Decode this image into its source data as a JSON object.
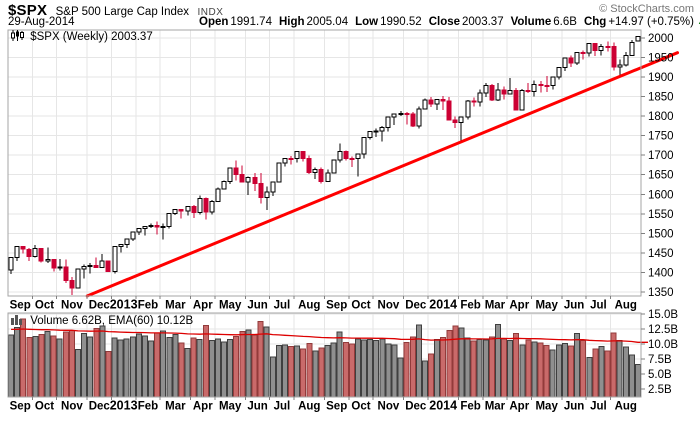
{
  "header": {
    "symbol": "$SPX",
    "name": "S&P 500 Large Cap Index",
    "exchange": "INDX",
    "copyright": "© StockCharts.com",
    "date": "29-Aug-2014",
    "quote": [
      {
        "label": "Open",
        "value": "1991.74"
      },
      {
        "label": "High",
        "value": "2005.04"
      },
      {
        "label": "Low",
        "value": "1990.52"
      },
      {
        "label": "Close",
        "value": "2003.37"
      },
      {
        "label": "Volume",
        "value": "6.6B"
      },
      {
        "label": "Chg",
        "value": "+14.97 (+0.75%)"
      }
    ],
    "chg_icon": "▲",
    "chg_direction": "up"
  },
  "price_panel": {
    "legend": "$SPX (Weekly) 2003.37"
  },
  "volume_panel": {
    "legend": "Volume 6.62B, EMA(60) 10.12B"
  },
  "colors": {
    "candle_up_fill": "#ffffff",
    "candle_up_stroke": "#000000",
    "candle_down": "#cc0033",
    "vol_up_fill": "#8f8f8f",
    "vol_up_stroke": "#3f3f3f",
    "vol_down_fill": "#c96a6a",
    "vol_down_stroke": "#923b3b",
    "trendline": "#ff0000",
    "ema": "#dd0000",
    "grid": "#e6e6e6",
    "panel_border": "#a6a6a6",
    "tick": "#808080",
    "axis_text": "#000000",
    "chg_up": "#007700"
  },
  "chart_data": {
    "type": "candlestick",
    "timeframe": "weekly",
    "title": "$SPX (Weekly)",
    "last_close": 2003.37,
    "months": [
      {
        "label": "Sep",
        "start": 0
      },
      {
        "label": "Oct",
        "start": 4
      },
      {
        "label": "Nov",
        "start": 8
      },
      {
        "label": "Dec",
        "start": 13
      },
      {
        "label": "2013",
        "start": 17,
        "year": true
      },
      {
        "label": "Feb",
        "start": 21
      },
      {
        "label": "Mar",
        "start": 25
      },
      {
        "label": "Apr",
        "start": 30
      },
      {
        "label": "May",
        "start": 34
      },
      {
        "label": "Jun",
        "start": 39
      },
      {
        "label": "Jul",
        "start": 43
      },
      {
        "label": "Aug",
        "start": 47
      },
      {
        "label": "Sep",
        "start": 52
      },
      {
        "label": "Oct",
        "start": 56
      },
      {
        "label": "Nov",
        "start": 60
      },
      {
        "label": "Dec",
        "start": 65
      },
      {
        "label": "2014",
        "start": 69,
        "year": true
      },
      {
        "label": "Feb",
        "start": 74
      },
      {
        "label": "Mar",
        "start": 78
      },
      {
        "label": "Apr",
        "start": 82
      },
      {
        "label": "May",
        "start": 86
      },
      {
        "label": "Jun",
        "start": 91
      },
      {
        "label": "Jul",
        "start": 95
      },
      {
        "label": "Aug",
        "start": 99
      }
    ],
    "price_axis": {
      "min": 1340,
      "max": 2020,
      "ticks": [
        1350,
        1400,
        1450,
        1500,
        1550,
        1600,
        1650,
        1700,
        1750,
        1800,
        1850,
        1900,
        1950,
        2000
      ]
    },
    "volume_axis": {
      "min": 1.2,
      "max": 15.2,
      "ticks": [
        {
          "v": 2.5,
          "label": "2.5B"
        },
        {
          "v": 5,
          "label": "5.0B"
        },
        {
          "v": 7.5,
          "label": "7.5B"
        },
        {
          "v": 10,
          "label": "10.0B"
        },
        {
          "v": 12.5,
          "label": "12.5B"
        },
        {
          "v": 15,
          "label": "15.0B"
        }
      ]
    },
    "trendline": {
      "start_week": 12.5,
      "start_value": 1340,
      "end_week": 109.5,
      "end_value": 1962
    },
    "ema": {
      "period": 60,
      "seed": 12.5,
      "last_label": "10.12B"
    },
    "candles": [
      [
        1406,
        1438,
        1396,
        1438,
        11.5
      ],
      [
        1438,
        1466,
        1429,
        1466,
        12.8
      ],
      [
        1466,
        1468,
        1449,
        1460,
        14.2
      ],
      [
        1459,
        1463,
        1430,
        1441,
        11.1
      ],
      [
        1441,
        1471,
        1439,
        1461,
        11.3
      ],
      [
        1461,
        1463,
        1426,
        1429,
        11.6
      ],
      [
        1429,
        1464,
        1425,
        1433,
        12.1
      ],
      [
        1433,
        1435,
        1403,
        1412,
        11.4
      ],
      [
        1412,
        1434,
        1405,
        1414,
        10.9
      ],
      [
        1414,
        1433,
        1373,
        1380,
        12.0
      ],
      [
        1380,
        1388,
        1343,
        1360,
        12.3
      ],
      [
        1360,
        1409,
        1359,
        1409,
        9.1
      ],
      [
        1409,
        1420,
        1385,
        1416,
        11.8
      ],
      [
        1416,
        1424,
        1398,
        1418,
        11.2
      ],
      [
        1418,
        1439,
        1411,
        1413,
        12.6
      ],
      [
        1413,
        1448,
        1413,
        1430,
        13.0
      ],
      [
        1430,
        1430,
        1401,
        1402,
        8.8
      ],
      [
        1402,
        1467,
        1398,
        1466,
        11.0
      ],
      [
        1466,
        1472,
        1451,
        1472,
        10.7
      ],
      [
        1472,
        1485,
        1463,
        1486,
        10.9
      ],
      [
        1486,
        1503,
        1481,
        1503,
        11.2
      ],
      [
        1503,
        1514,
        1496,
        1513,
        11.7
      ],
      [
        1513,
        1518,
        1495,
        1518,
        11.4
      ],
      [
        1518,
        1525,
        1514,
        1520,
        10.5
      ],
      [
        1520,
        1530,
        1497,
        1516,
        11.9
      ],
      [
        1516,
        1525,
        1485,
        1518,
        12.2
      ],
      [
        1518,
        1552,
        1512,
        1551,
        11.1
      ],
      [
        1551,
        1563,
        1547,
        1561,
        11.6
      ],
      [
        1561,
        1561,
        1538,
        1557,
        10.2
      ],
      [
        1557,
        1570,
        1546,
        1569,
        9.3
      ],
      [
        1569,
        1573,
        1539,
        1553,
        11.0
      ],
      [
        1553,
        1597,
        1548,
        1589,
        10.8
      ],
      [
        1589,
        1592,
        1536,
        1555,
        13.1
      ],
      [
        1555,
        1585,
        1548,
        1582,
        10.6
      ],
      [
        1582,
        1618,
        1581,
        1614,
        10.9
      ],
      [
        1614,
        1635,
        1612,
        1633,
        10.4
      ],
      [
        1633,
        1667,
        1626,
        1667,
        10.8
      ],
      [
        1667,
        1687,
        1635,
        1650,
        11.3
      ],
      [
        1650,
        1674,
        1630,
        1631,
        12.1
      ],
      [
        1631,
        1646,
        1598,
        1643,
        12.4
      ],
      [
        1643,
        1654,
        1608,
        1627,
        11.5
      ],
      [
        1627,
        1655,
        1577,
        1592,
        13.8
      ],
      [
        1592,
        1620,
        1560,
        1606,
        12.9
      ],
      [
        1606,
        1632,
        1596,
        1632,
        7.9
      ],
      [
        1632,
        1680,
        1632,
        1680,
        9.8
      ],
      [
        1680,
        1693,
        1671,
        1692,
        9.9
      ],
      [
        1692,
        1698,
        1676,
        1691,
        9.6
      ],
      [
        1691,
        1710,
        1681,
        1710,
        9.7
      ],
      [
        1710,
        1711,
        1684,
        1691,
        9.2
      ],
      [
        1691,
        1699,
        1652,
        1656,
        10.1
      ],
      [
        1656,
        1669,
        1639,
        1664,
        8.9
      ],
      [
        1664,
        1669,
        1628,
        1633,
        9.4
      ],
      [
        1633,
        1664,
        1633,
        1655,
        9.8
      ],
      [
        1655,
        1689,
        1653,
        1688,
        10.2
      ],
      [
        1688,
        1730,
        1681,
        1710,
        12.0
      ],
      [
        1710,
        1712,
        1687,
        1692,
        10.3
      ],
      [
        1692,
        1697,
        1670,
        1691,
        10.0
      ],
      [
        1691,
        1703,
        1646,
        1703,
        10.9
      ],
      [
        1703,
        1745,
        1692,
        1745,
        10.7
      ],
      [
        1745,
        1762,
        1740,
        1760,
        10.8
      ],
      [
        1760,
        1768,
        1746,
        1762,
        10.6
      ],
      [
        1762,
        1774,
        1735,
        1771,
        10.9
      ],
      [
        1771,
        1798,
        1760,
        1798,
        10.0
      ],
      [
        1798,
        1805,
        1777,
        1805,
        9.9
      ],
      [
        1805,
        1813,
        1800,
        1806,
        7.7
      ],
      [
        1806,
        1810,
        1779,
        1805,
        10.3
      ],
      [
        1805,
        1811,
        1772,
        1775,
        11.2
      ],
      [
        1775,
        1824,
        1768,
        1818,
        13.2
      ],
      [
        1818,
        1845,
        1818,
        1841,
        7.2
      ],
      [
        1841,
        1849,
        1823,
        1831,
        8.4
      ],
      [
        1831,
        1843,
        1815,
        1842,
        10.8
      ],
      [
        1842,
        1851,
        1815,
        1839,
        11.1
      ],
      [
        1839,
        1849,
        1790,
        1790,
        12.3
      ],
      [
        1790,
        1799,
        1770,
        1783,
        13.0
      ],
      [
        1783,
        1798,
        1737,
        1797,
        12.7
      ],
      [
        1797,
        1841,
        1791,
        1839,
        11.0
      ],
      [
        1839,
        1847,
        1824,
        1836,
        10.5
      ],
      [
        1836,
        1868,
        1824,
        1859,
        10.8
      ],
      [
        1859,
        1884,
        1849,
        1878,
        10.7
      ],
      [
        1878,
        1882,
        1839,
        1841,
        11.2
      ],
      [
        1841,
        1884,
        1839,
        1866,
        13.3
      ],
      [
        1866,
        1875,
        1842,
        1857,
        10.9
      ],
      [
        1857,
        1897,
        1855,
        1865,
        10.6
      ],
      [
        1865,
        1872,
        1814,
        1816,
        11.8
      ],
      [
        1816,
        1869,
        1815,
        1865,
        9.9
      ],
      [
        1865,
        1885,
        1859,
        1863,
        10.7
      ],
      [
        1863,
        1891,
        1850,
        1881,
        10.4
      ],
      [
        1881,
        1889,
        1860,
        1878,
        10.2
      ],
      [
        1878,
        1902,
        1862,
        1878,
        9.8
      ],
      [
        1878,
        1901,
        1868,
        1900,
        9.0
      ],
      [
        1900,
        1924,
        1894,
        1924,
        9.9
      ],
      [
        1924,
        1949,
        1915,
        1949,
        10.1
      ],
      [
        1949,
        1955,
        1925,
        1936,
        9.7
      ],
      [
        1936,
        1963,
        1930,
        1963,
        11.8
      ],
      [
        1963,
        1968,
        1944,
        1961,
        10.6
      ],
      [
        1961,
        1985,
        1952,
        1985,
        7.8
      ],
      [
        1985,
        1985,
        1953,
        1968,
        9.2
      ],
      [
        1968,
        1984,
        1955,
        1978,
        9.6
      ],
      [
        1978,
        1991,
        1965,
        1978,
        8.9
      ],
      [
        1978,
        1988,
        1916,
        1925,
        11.9
      ],
      [
        1925,
        1944,
        1904,
        1931,
        10.6
      ],
      [
        1931,
        1964,
        1927,
        1955,
        9.5
      ],
      [
        1955,
        1994,
        1954,
        1988,
        8.2
      ],
      [
        1991.74,
        2005.04,
        1990.52,
        2003.37,
        6.62
      ]
    ]
  }
}
